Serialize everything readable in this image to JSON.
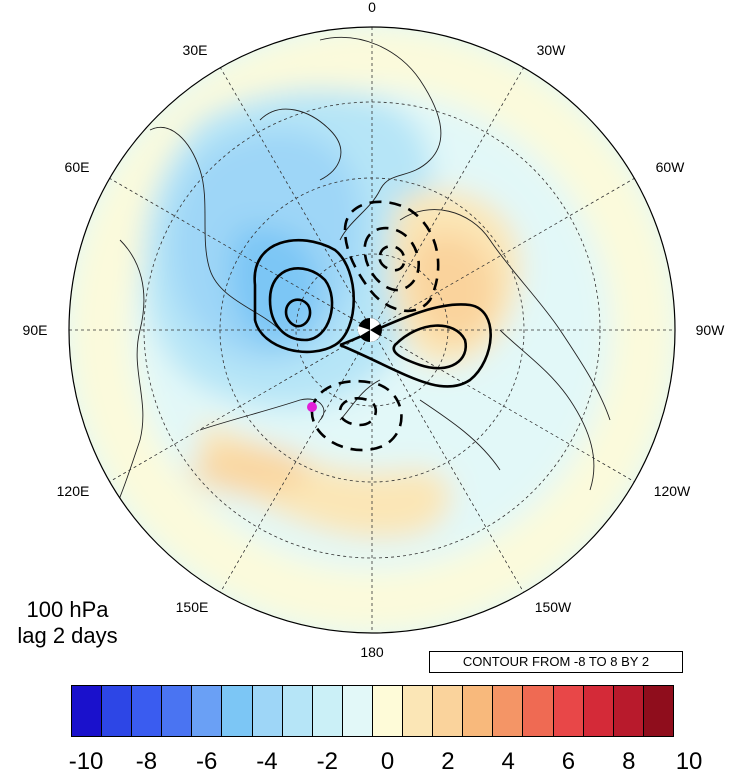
{
  "map": {
    "projection": "north polar stereographic",
    "lon_labels": [
      {
        "text": "0",
        "lon": 0
      },
      {
        "text": "30W",
        "lon": -30
      },
      {
        "text": "60W",
        "lon": -60
      },
      {
        "text": "90W",
        "lon": -90
      },
      {
        "text": "120W",
        "lon": -120
      },
      {
        "text": "150W",
        "lon": -150
      },
      {
        "text": "180",
        "lon": 180
      },
      {
        "text": "150E",
        "lon": 150
      },
      {
        "text": "120E",
        "lon": 120
      },
      {
        "text": "90E",
        "lon": 90
      },
      {
        "text": "60E",
        "lon": 60
      },
      {
        "text": "30E",
        "lon": 30
      }
    ],
    "shading_levels": [
      -10,
      -8,
      -6,
      -4,
      -2,
      0,
      2,
      4,
      6,
      8,
      10
    ],
    "shading_colors": [
      "#1a11cc",
      "#2d46e6",
      "#3a5cf0",
      "#4a74f2",
      "#6aa0f5",
      "#7cc6f5",
      "#9ed6f7",
      "#b6e5f7",
      "#cbf0f7",
      "#e2f8f8",
      "#fefbd8",
      "#fbe6b6",
      "#fad39c",
      "#f8b97c",
      "#f49566",
      "#ef6a53",
      "#e84748",
      "#d42a38",
      "#b81a2c",
      "#8f0d1c"
    ],
    "contour_interval": 2,
    "contour_range": [
      -8,
      8
    ],
    "marker_color": "#e020d8"
  },
  "panel": {
    "level": "100 hPa",
    "lag": "lag 2 days"
  },
  "contour_info": "CONTOUR FROM -8 TO 8 BY 2",
  "colorbar": {
    "tick_labels": [
      "-10",
      "-8",
      "-6",
      "-4",
      "-2",
      "0",
      "2",
      "4",
      "6",
      "8",
      "10"
    ]
  }
}
